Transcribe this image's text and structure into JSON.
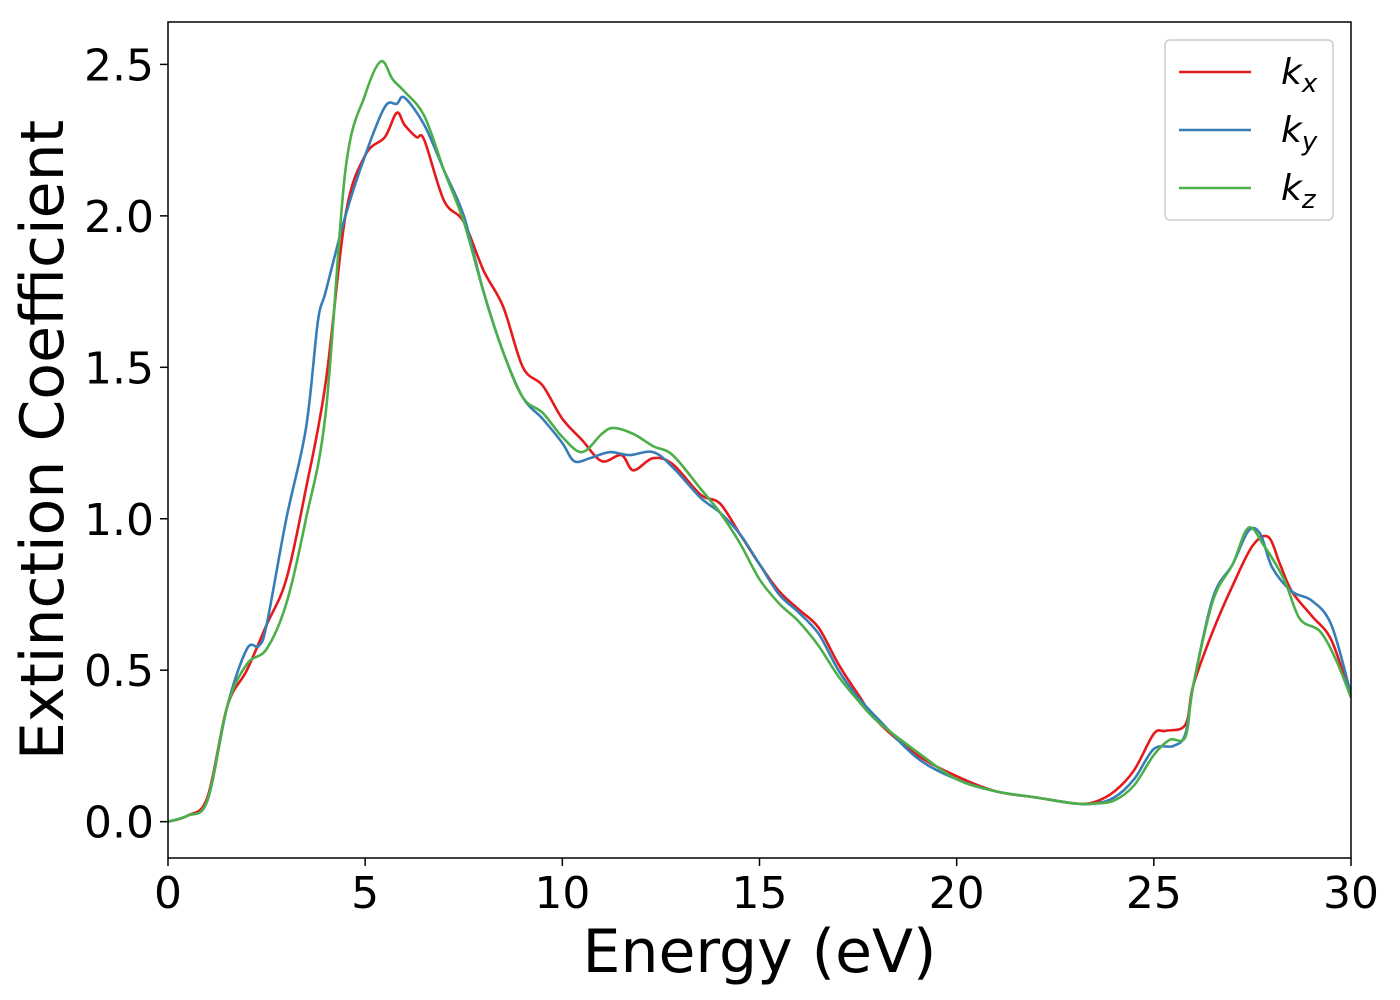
{
  "chart_data": {
    "type": "line",
    "xlabel": "Energy (eV)",
    "ylabel": "Extinction Coefficient",
    "xlim": [
      0,
      30
    ],
    "ylim": [
      -0.12,
      2.64
    ],
    "xticks": [
      0,
      5,
      10,
      15,
      20,
      25,
      30
    ],
    "xtick_labels": [
      "0",
      "5",
      "10",
      "15",
      "20",
      "25",
      "30"
    ],
    "yticks": [
      0.0,
      0.5,
      1.0,
      1.5,
      2.0,
      2.5
    ],
    "ytick_labels": [
      "0.0",
      "0.5",
      "1.0",
      "1.5",
      "2.0",
      "2.5"
    ],
    "grid": false,
    "legend_position": "top-right",
    "series": [
      {
        "name": "k",
        "subscript": "x",
        "color": "#e41a1c",
        "points": [
          [
            0,
            0
          ],
          [
            0.5,
            0.02
          ],
          [
            1.0,
            0.08
          ],
          [
            1.5,
            0.38
          ],
          [
            2.0,
            0.5
          ],
          [
            2.5,
            0.65
          ],
          [
            3.0,
            0.8
          ],
          [
            3.5,
            1.1
          ],
          [
            4.0,
            1.45
          ],
          [
            4.5,
            2.0
          ],
          [
            5.0,
            2.2
          ],
          [
            5.5,
            2.26
          ],
          [
            5.8,
            2.34
          ],
          [
            6.0,
            2.3
          ],
          [
            6.3,
            2.26
          ],
          [
            6.5,
            2.25
          ],
          [
            7.0,
            2.05
          ],
          [
            7.5,
            1.98
          ],
          [
            8.0,
            1.82
          ],
          [
            8.5,
            1.7
          ],
          [
            9.0,
            1.5
          ],
          [
            9.5,
            1.44
          ],
          [
            10.0,
            1.33
          ],
          [
            10.5,
            1.26
          ],
          [
            11.0,
            1.19
          ],
          [
            11.5,
            1.21
          ],
          [
            11.8,
            1.16
          ],
          [
            12.3,
            1.2
          ],
          [
            12.8,
            1.18
          ],
          [
            13.5,
            1.08
          ],
          [
            14.0,
            1.05
          ],
          [
            14.5,
            0.95
          ],
          [
            15.0,
            0.85
          ],
          [
            15.5,
            0.76
          ],
          [
            16.0,
            0.7
          ],
          [
            16.5,
            0.64
          ],
          [
            17.0,
            0.52
          ],
          [
            17.5,
            0.42
          ],
          [
            18.0,
            0.33
          ],
          [
            19.0,
            0.22
          ],
          [
            20.0,
            0.15
          ],
          [
            21.0,
            0.1
          ],
          [
            22.0,
            0.08
          ],
          [
            23.0,
            0.06
          ],
          [
            23.5,
            0.065
          ],
          [
            24.0,
            0.1
          ],
          [
            24.5,
            0.17
          ],
          [
            25.0,
            0.29
          ],
          [
            25.3,
            0.3
          ],
          [
            25.8,
            0.32
          ],
          [
            26.0,
            0.45
          ],
          [
            26.5,
            0.63
          ],
          [
            27.0,
            0.78
          ],
          [
            27.5,
            0.91
          ],
          [
            27.9,
            0.94
          ],
          [
            28.2,
            0.85
          ],
          [
            28.5,
            0.76
          ],
          [
            29.0,
            0.68
          ],
          [
            29.5,
            0.6
          ],
          [
            30.0,
            0.41
          ]
        ]
      },
      {
        "name": "k",
        "subscript": "y",
        "color": "#377eb8",
        "points": [
          [
            0,
            0
          ],
          [
            0.5,
            0.02
          ],
          [
            1.0,
            0.07
          ],
          [
            1.5,
            0.38
          ],
          [
            2.0,
            0.57
          ],
          [
            2.3,
            0.58
          ],
          [
            2.5,
            0.65
          ],
          [
            3.0,
            1.0
          ],
          [
            3.5,
            1.3
          ],
          [
            3.8,
            1.65
          ],
          [
            4.0,
            1.75
          ],
          [
            4.5,
            2.0
          ],
          [
            5.0,
            2.2
          ],
          [
            5.5,
            2.36
          ],
          [
            5.8,
            2.37
          ],
          [
            6.0,
            2.39
          ],
          [
            6.5,
            2.3
          ],
          [
            7.0,
            2.15
          ],
          [
            7.5,
            2.0
          ],
          [
            8.0,
            1.75
          ],
          [
            8.5,
            1.55
          ],
          [
            9.0,
            1.4
          ],
          [
            9.5,
            1.33
          ],
          [
            10.0,
            1.25
          ],
          [
            10.3,
            1.19
          ],
          [
            10.7,
            1.2
          ],
          [
            11.2,
            1.22
          ],
          [
            11.7,
            1.21
          ],
          [
            12.3,
            1.22
          ],
          [
            12.8,
            1.17
          ],
          [
            13.5,
            1.07
          ],
          [
            14.0,
            1.02
          ],
          [
            14.5,
            0.95
          ],
          [
            15.0,
            0.85
          ],
          [
            15.5,
            0.75
          ],
          [
            16.0,
            0.69
          ],
          [
            16.5,
            0.62
          ],
          [
            17.0,
            0.5
          ],
          [
            17.5,
            0.41
          ],
          [
            18.0,
            0.34
          ],
          [
            19.0,
            0.21
          ],
          [
            20.0,
            0.14
          ],
          [
            21.0,
            0.1
          ],
          [
            22.0,
            0.08
          ],
          [
            23.0,
            0.06
          ],
          [
            23.5,
            0.06
          ],
          [
            24.0,
            0.08
          ],
          [
            24.5,
            0.14
          ],
          [
            25.0,
            0.24
          ],
          [
            25.5,
            0.25
          ],
          [
            25.8,
            0.29
          ],
          [
            26.0,
            0.45
          ],
          [
            26.5,
            0.74
          ],
          [
            27.0,
            0.85
          ],
          [
            27.4,
            0.96
          ],
          [
            27.7,
            0.95
          ],
          [
            28.0,
            0.84
          ],
          [
            28.5,
            0.76
          ],
          [
            29.0,
            0.73
          ],
          [
            29.5,
            0.65
          ],
          [
            30.0,
            0.42
          ]
        ]
      },
      {
        "name": "k",
        "subscript": "z",
        "color": "#4daf4a",
        "points": [
          [
            0,
            0
          ],
          [
            0.5,
            0.02
          ],
          [
            1.0,
            0.07
          ],
          [
            1.5,
            0.38
          ],
          [
            2.0,
            0.52
          ],
          [
            2.5,
            0.57
          ],
          [
            3.0,
            0.72
          ],
          [
            3.5,
            1.0
          ],
          [
            4.0,
            1.35
          ],
          [
            4.5,
            2.15
          ],
          [
            5.0,
            2.4
          ],
          [
            5.4,
            2.51
          ],
          [
            5.7,
            2.45
          ],
          [
            6.0,
            2.41
          ],
          [
            6.5,
            2.33
          ],
          [
            7.0,
            2.15
          ],
          [
            7.5,
            1.98
          ],
          [
            8.0,
            1.75
          ],
          [
            8.5,
            1.55
          ],
          [
            9.0,
            1.4
          ],
          [
            9.5,
            1.35
          ],
          [
            10.0,
            1.27
          ],
          [
            10.5,
            1.22
          ],
          [
            11.0,
            1.28
          ],
          [
            11.3,
            1.3
          ],
          [
            11.8,
            1.28
          ],
          [
            12.3,
            1.24
          ],
          [
            12.8,
            1.21
          ],
          [
            13.5,
            1.1
          ],
          [
            14.0,
            1.02
          ],
          [
            14.5,
            0.92
          ],
          [
            15.0,
            0.8
          ],
          [
            15.5,
            0.72
          ],
          [
            16.0,
            0.66
          ],
          [
            16.5,
            0.58
          ],
          [
            17.0,
            0.48
          ],
          [
            17.5,
            0.4
          ],
          [
            18.0,
            0.33
          ],
          [
            19.0,
            0.23
          ],
          [
            20.0,
            0.14
          ],
          [
            21.0,
            0.1
          ],
          [
            22.0,
            0.08
          ],
          [
            23.0,
            0.06
          ],
          [
            23.5,
            0.06
          ],
          [
            24.0,
            0.07
          ],
          [
            24.5,
            0.12
          ],
          [
            25.0,
            0.22
          ],
          [
            25.4,
            0.27
          ],
          [
            25.8,
            0.28
          ],
          [
            26.0,
            0.45
          ],
          [
            26.5,
            0.73
          ],
          [
            27.0,
            0.85
          ],
          [
            27.4,
            0.97
          ],
          [
            27.8,
            0.91
          ],
          [
            28.3,
            0.8
          ],
          [
            28.7,
            0.67
          ],
          [
            29.2,
            0.63
          ],
          [
            29.6,
            0.54
          ],
          [
            30.0,
            0.41
          ]
        ]
      }
    ]
  }
}
